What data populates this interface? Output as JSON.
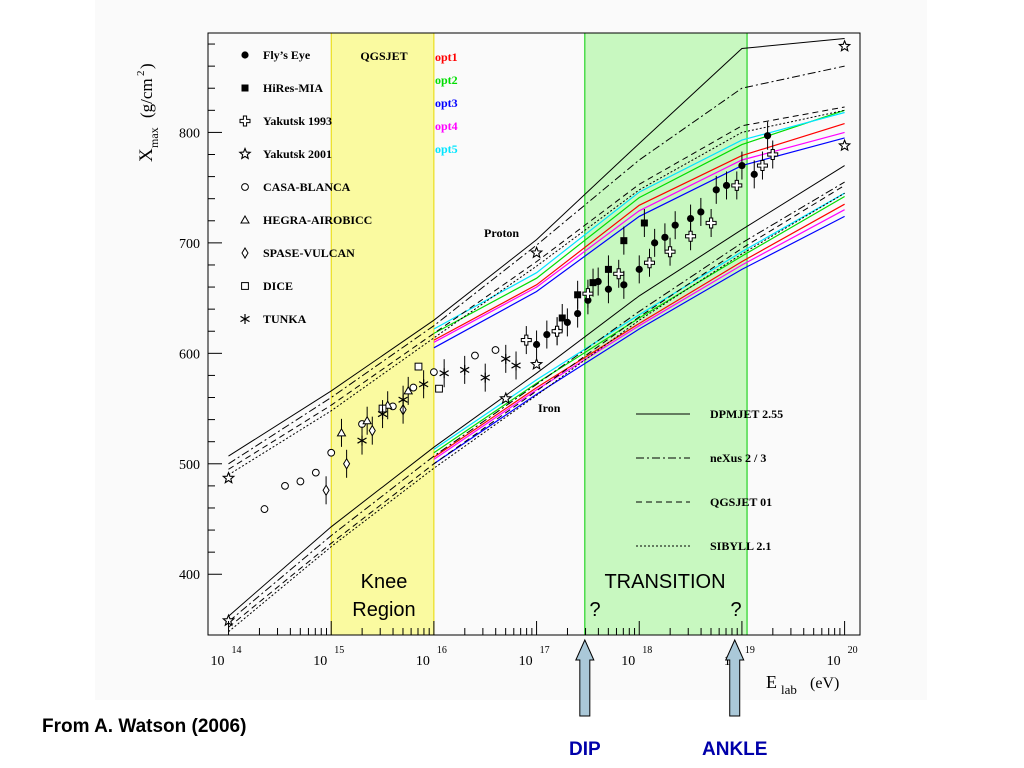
{
  "chart_data": {
    "type": "scatter",
    "title": "",
    "xlabel": "E",
    "xlabel_sub": "lab",
    "xunit": "(eV)",
    "ylabel": "X",
    "ylabel_sub": "max",
    "yunit": "(g/cm",
    "yunit_sup": "2",
    "yunit_end": ")",
    "xscale": "log",
    "xlim_log10": [
      13.8,
      20.15
    ],
    "ylim": [
      345,
      890
    ],
    "x_ticks": [
      {
        "base": "10",
        "exp": "14"
      },
      {
        "base": "10",
        "exp": "15"
      },
      {
        "base": "10",
        "exp": "16"
      },
      {
        "base": "10",
        "exp": "17"
      },
      {
        "base": "10",
        "exp": "18"
      },
      {
        "base": "10",
        "exp": "19"
      },
      {
        "base": "10",
        "exp": "20"
      }
    ],
    "y_ticks": [
      "400",
      "500",
      "600",
      "700",
      "800"
    ],
    "bands": [
      {
        "from_log10": 15.0,
        "to_log10": 16.0,
        "color": "#fafaa0",
        "border": "#e8d800",
        "label_line1": "Knee",
        "label_line2": "Region"
      },
      {
        "from_log10": 17.47,
        "to_log10": 19.05,
        "color": "#c8f8c0",
        "border": "#00cc00",
        "label_line1": "TRANSITION",
        "q_left": "?",
        "q_right": "?"
      }
    ],
    "legend_experiments": [
      {
        "name": "Fly’s Eye",
        "marker": "filled-circle"
      },
      {
        "name": "HiRes-MIA",
        "marker": "filled-square"
      },
      {
        "name": "Yakutsk 1993",
        "marker": "open-cross"
      },
      {
        "name": "Yakutsk 2001",
        "marker": "open-star"
      },
      {
        "name": "CASA-BLANCA",
        "marker": "open-circle"
      },
      {
        "name": "HEGRA-AIROBICC",
        "marker": "open-triangle"
      },
      {
        "name": "SPASE-VULCAN",
        "marker": "open-diamond"
      },
      {
        "name": "DICE",
        "marker": "open-square"
      },
      {
        "name": "TUNKA",
        "marker": "asterisk"
      }
    ],
    "legend_qgsjet": {
      "title": "QGSJET",
      "options": [
        {
          "name": "opt1",
          "color": "#ff0000"
        },
        {
          "name": "opt2",
          "color": "#00dd00"
        },
        {
          "name": "opt3",
          "color": "#0000ff"
        },
        {
          "name": "opt4",
          "color": "#ff00ff"
        },
        {
          "name": "opt5",
          "color": "#00e5ff"
        }
      ]
    },
    "legend_models": [
      {
        "name": "DPMJET 2.55",
        "dash": "none"
      },
      {
        "name": "neXus 2 / 3",
        "dash": "8 3 2 3"
      },
      {
        "name": "QGSJET 01",
        "dash": "6 4"
      },
      {
        "name": "SIBYLL 2.1",
        "dash": "2 2"
      }
    ],
    "curve_labels": {
      "proton": "Proton",
      "iron": "Iron"
    },
    "proton_curves": [
      {
        "dash": "none",
        "color": "#000000",
        "points": [
          [
            14,
            507
          ],
          [
            15,
            566
          ],
          [
            16,
            630
          ],
          [
            17,
            703
          ],
          [
            18,
            790
          ],
          [
            19,
            876
          ],
          [
            20,
            885
          ]
        ]
      },
      {
        "dash": "8 3 2 3",
        "color": "#000000",
        "points": [
          [
            14,
            500
          ],
          [
            15,
            560
          ],
          [
            16,
            625
          ],
          [
            17,
            698
          ],
          [
            18,
            775
          ],
          [
            19,
            840
          ],
          [
            20,
            860
          ]
        ]
      },
      {
        "dash": "6 4",
        "color": "#000000",
        "points": [
          [
            14,
            495
          ],
          [
            15,
            553
          ],
          [
            16,
            618
          ],
          [
            17,
            683
          ],
          [
            18,
            753
          ],
          [
            19,
            806
          ],
          [
            20,
            823
          ]
        ]
      },
      {
        "dash": "2 2",
        "color": "#000000",
        "points": [
          [
            14,
            490
          ],
          [
            15,
            548
          ],
          [
            16,
            614
          ],
          [
            17,
            679
          ],
          [
            18,
            748
          ],
          [
            19,
            800
          ],
          [
            20,
            820
          ]
        ]
      }
    ],
    "iron_curves": [
      {
        "dash": "none",
        "color": "#000000",
        "points": [
          [
            14,
            362
          ],
          [
            15,
            443
          ],
          [
            16,
            515
          ],
          [
            17,
            582
          ],
          [
            18,
            652
          ],
          [
            19,
            712
          ],
          [
            20,
            770
          ]
        ]
      },
      {
        "dash": "8 3 2 3",
        "color": "#000000",
        "points": [
          [
            14,
            357
          ],
          [
            15,
            435
          ],
          [
            16,
            507
          ],
          [
            17,
            572
          ],
          [
            18,
            638
          ],
          [
            19,
            700
          ],
          [
            20,
            755
          ]
        ]
      },
      {
        "dash": "6 4",
        "color": "#000000",
        "points": [
          [
            14,
            352
          ],
          [
            15,
            428
          ],
          [
            16,
            500
          ],
          [
            17,
            566
          ],
          [
            18,
            633
          ],
          [
            19,
            695
          ],
          [
            20,
            752
          ]
        ]
      },
      {
        "dash": "2 2",
        "color": "#000000",
        "points": [
          [
            14,
            348
          ],
          [
            15,
            425
          ],
          [
            16,
            496
          ],
          [
            17,
            562
          ],
          [
            18,
            630
          ],
          [
            19,
            690
          ],
          [
            20,
            745
          ]
        ]
      }
    ],
    "qgsjet_opt_proton": [
      {
        "color": "#ff0000",
        "points": [
          [
            16,
            612
          ],
          [
            17,
            662
          ],
          [
            18,
            734
          ],
          [
            19,
            779
          ],
          [
            20,
            808
          ]
        ]
      },
      {
        "color": "#00dd00",
        "points": [
          [
            16,
            618
          ],
          [
            17,
            668
          ],
          [
            18,
            741
          ],
          [
            19,
            789
          ],
          [
            20,
            820
          ]
        ]
      },
      {
        "color": "#0000ff",
        "points": [
          [
            16,
            605
          ],
          [
            17,
            656
          ],
          [
            18,
            724
          ],
          [
            19,
            770
          ],
          [
            20,
            795
          ]
        ]
      },
      {
        "color": "#ff00ff",
        "points": [
          [
            16,
            610
          ],
          [
            17,
            660
          ],
          [
            18,
            729
          ],
          [
            19,
            775
          ],
          [
            20,
            800
          ]
        ]
      },
      {
        "color": "#00e5ff",
        "points": [
          [
            16,
            622
          ],
          [
            17,
            673
          ],
          [
            18,
            746
          ],
          [
            19,
            793
          ],
          [
            20,
            818
          ]
        ]
      }
    ],
    "qgsjet_opt_iron": [
      {
        "color": "#ff0000",
        "points": [
          [
            16,
            506
          ],
          [
            17,
            569
          ],
          [
            18,
            627
          ],
          [
            19,
            683
          ],
          [
            20,
            735
          ]
        ]
      },
      {
        "color": "#00dd00",
        "points": [
          [
            16,
            510
          ],
          [
            17,
            573
          ],
          [
            18,
            632
          ],
          [
            19,
            688
          ],
          [
            20,
            742
          ]
        ]
      },
      {
        "color": "#0000ff",
        "points": [
          [
            16,
            500
          ],
          [
            17,
            563
          ],
          [
            18,
            622
          ],
          [
            19,
            676
          ],
          [
            20,
            724
          ]
        ]
      },
      {
        "color": "#ff00ff",
        "points": [
          [
            16,
            504
          ],
          [
            17,
            567
          ],
          [
            18,
            625
          ],
          [
            19,
            680
          ],
          [
            20,
            730
          ]
        ]
      },
      {
        "color": "#00e5ff",
        "points": [
          [
            16,
            513
          ],
          [
            17,
            576
          ],
          [
            18,
            635
          ],
          [
            19,
            692
          ],
          [
            20,
            745
          ]
        ]
      }
    ],
    "data_points": {
      "flys_eye": [
        [
          17.0,
          608
        ],
        [
          17.1,
          617
        ],
        [
          17.2,
          620
        ],
        [
          17.3,
          628
        ],
        [
          17.4,
          636
        ],
        [
          17.5,
          648
        ],
        [
          17.6,
          665
        ],
        [
          17.7,
          658
        ],
        [
          17.85,
          662
        ],
        [
          18.0,
          676
        ],
        [
          18.15,
          700
        ],
        [
          18.25,
          705
        ],
        [
          18.35,
          716
        ],
        [
          18.5,
          722
        ],
        [
          18.6,
          728
        ],
        [
          18.75,
          748
        ],
        [
          18.85,
          752
        ],
        [
          19.0,
          770
        ],
        [
          19.12,
          762
        ],
        [
          19.25,
          797
        ]
      ],
      "hires_mia": [
        [
          17.25,
          632
        ],
        [
          17.4,
          653
        ],
        [
          17.55,
          664
        ],
        [
          17.7,
          676
        ],
        [
          17.85,
          702
        ],
        [
          18.05,
          718
        ]
      ],
      "yakutsk_1993": [
        [
          16.9,
          612
        ],
        [
          17.2,
          620
        ],
        [
          17.5,
          654
        ],
        [
          17.8,
          672
        ],
        [
          18.1,
          682
        ],
        [
          18.3,
          692
        ],
        [
          18.5,
          706
        ],
        [
          18.7,
          718
        ],
        [
          18.95,
          752
        ],
        [
          19.2,
          770
        ],
        [
          19.3,
          780
        ]
      ],
      "yakutsk_2001": [
        [
          14.0,
          487
        ],
        [
          14.0,
          358
        ],
        [
          17.0,
          691
        ],
        [
          17.0,
          590
        ],
        [
          16.7,
          559
        ],
        [
          20.0,
          878
        ],
        [
          20.0,
          788
        ]
      ],
      "casa_blanca": [
        [
          14.35,
          459
        ],
        [
          14.55,
          480
        ],
        [
          14.7,
          484
        ],
        [
          14.85,
          492
        ],
        [
          15.0,
          510
        ],
        [
          15.3,
          536
        ],
        [
          15.6,
          552
        ],
        [
          15.8,
          569
        ],
        [
          16.0,
          583
        ],
        [
          16.4,
          598
        ],
        [
          16.6,
          603
        ]
      ],
      "hegra_airobicc": [
        [
          15.1,
          528
        ],
        [
          15.35,
          539
        ],
        [
          15.55,
          553
        ],
        [
          15.75,
          566
        ]
      ],
      "spase_vulcan": [
        [
          14.95,
          476
        ],
        [
          15.15,
          500
        ],
        [
          15.4,
          530
        ],
        [
          15.7,
          549
        ]
      ],
      "dice": [
        [
          15.5,
          550
        ],
        [
          15.85,
          588
        ],
        [
          16.05,
          568
        ]
      ],
      "tunka": [
        [
          15.3,
          521
        ],
        [
          15.5,
          545
        ],
        [
          15.7,
          558
        ],
        [
          15.9,
          572
        ],
        [
          16.1,
          582
        ],
        [
          16.3,
          585
        ],
        [
          16.5,
          578
        ],
        [
          16.7,
          595
        ],
        [
          16.8,
          589
        ]
      ]
    },
    "arrows": [
      {
        "x_log10": 17.47,
        "label": "DIP"
      },
      {
        "x_log10": 18.93,
        "label": "ANKLE"
      }
    ]
  },
  "caption": "From A. Watson (2006)"
}
